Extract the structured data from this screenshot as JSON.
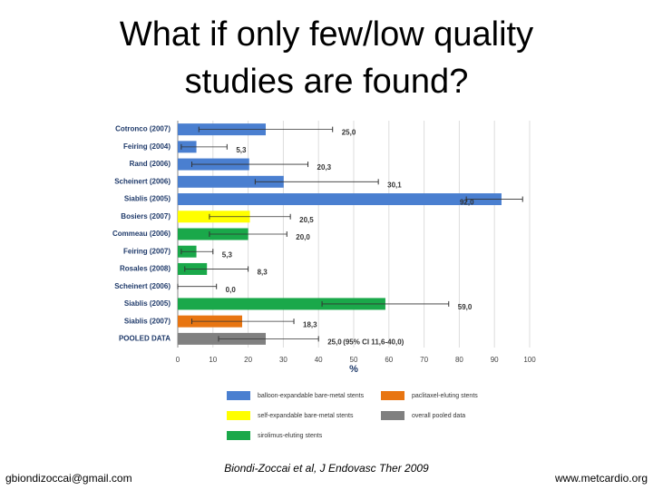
{
  "title_lines": [
    "What if only few/low quality",
    "studies are found?"
  ],
  "footer": {
    "left": "gbiondizoccai@gmail.com",
    "center": "Biondi-Zoccai et al, J Endovasc Ther 2009",
    "right": "www.metcardio.org"
  },
  "chart_data": {
    "type": "bar",
    "orientation": "horizontal",
    "categories": [
      "Cotronco (2007)",
      "Feiring (2004)",
      "Rand (2006)",
      "Scheinert (2006)",
      "Siablis (2005)",
      "Bosiers (2007)",
      "Commeau (2006)",
      "Feiring (2007)",
      "Rosales (2008)",
      "Scheinert (2006)",
      "Siablis (2005)",
      "Siablis (2007)",
      "POOLED DATA"
    ],
    "values": [
      25.0,
      5.3,
      20.3,
      30.1,
      92.0,
      20.5,
      20.0,
      5.3,
      8.3,
      0.0,
      59.0,
      18.3,
      25.0
    ],
    "value_labels": [
      "25,0",
      "5,3",
      "20,3",
      "30,1",
      "92,0",
      "20,5",
      "20,0",
      "5,3",
      "8,3",
      "0,0",
      "59,0",
      "18,3",
      "25,0"
    ],
    "ci_low": [
      6,
      1,
      4,
      22,
      82,
      9,
      9,
      1,
      2,
      0,
      41,
      4,
      11.6
    ],
    "ci_high": [
      44,
      14,
      37,
      57,
      98,
      32,
      31,
      10,
      20,
      11,
      77,
      33,
      40.0
    ],
    "colors": [
      "#4a7fd0",
      "#4a7fd0",
      "#4a7fd0",
      "#4a7fd0",
      "#4a7fd0",
      "#ffff00",
      "#1aa84a",
      "#1aa84a",
      "#1aa84a",
      "#1aa84a",
      "#1aa84a",
      "#e87511",
      "#808080"
    ],
    "annotation": "(95% CI 11,6-40,0)",
    "xlabel": "%",
    "xlim": [
      0,
      100
    ],
    "xticks": [
      0,
      10,
      20,
      30,
      40,
      50,
      60,
      70,
      80,
      90,
      100
    ],
    "grid": true,
    "legend": [
      {
        "name": "balloon-expandable bare-metal stents",
        "color": "#4a7fd0"
      },
      {
        "name": "paclitaxel-eluting stents",
        "color": "#e87511"
      },
      {
        "name": "self-expandable bare-metal stents",
        "color": "#ffff00"
      },
      {
        "name": "overall pooled data",
        "color": "#808080"
      },
      {
        "name": "sirolimus-eluting stents",
        "color": "#1aa84a"
      }
    ]
  }
}
